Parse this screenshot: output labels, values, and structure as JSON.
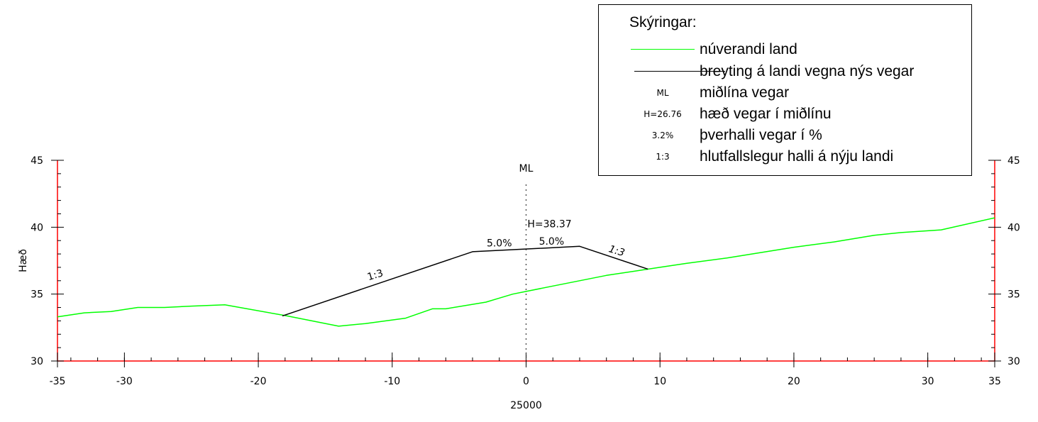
{
  "chart_data": {
    "type": "line",
    "ylabel": "Hæð",
    "xlabel": "25000",
    "xlim": [
      -35,
      35
    ],
    "ylim": [
      30,
      45
    ],
    "x_ticks": [
      -35,
      -30,
      -20,
      -10,
      0,
      10,
      20,
      30,
      35
    ],
    "y_ticks": [
      30,
      35,
      40,
      45
    ],
    "colors": {
      "existing": "#00ff00",
      "new": "#000000",
      "axis": "#ff0000",
      "centerline": "#555555"
    },
    "series": [
      {
        "name": "núverandi land",
        "x": [
          -35,
          -33,
          -31,
          -29,
          -27,
          -25,
          -22.5,
          -18,
          -14,
          -12,
          -9,
          -7,
          -6,
          -3,
          -2,
          -1,
          0,
          2,
          4,
          6,
          8,
          10,
          12,
          15,
          20,
          23,
          26,
          28,
          31,
          35
        ],
        "y": [
          33.3,
          33.6,
          33.7,
          34.0,
          34.0,
          34.1,
          34.2,
          33.4,
          32.6,
          32.8,
          33.2,
          33.9,
          33.9,
          34.4,
          34.7,
          35.0,
          35.2,
          35.6,
          36.0,
          36.4,
          36.7,
          37.0,
          37.3,
          37.7,
          38.5,
          38.9,
          39.4,
          39.6,
          39.8,
          40.7
        ]
      },
      {
        "name": "breyting á landi vegna nýs vegar",
        "x": [
          -18.2,
          -4,
          4,
          9.1
        ],
        "y": [
          33.37,
          38.17,
          38.57,
          36.87
        ]
      }
    ],
    "annotations": {
      "centerline_label": "ML",
      "height_label": "H=38.37",
      "left_crossfall": "5.0%",
      "right_crossfall": "5.0%",
      "left_slope": "1:3",
      "right_slope": "1:3"
    }
  },
  "legend": {
    "title": "Skýringar:",
    "items": [
      {
        "symbol": "",
        "type": "line-green",
        "text": "núverandi land"
      },
      {
        "symbol": "",
        "type": "line-black",
        "text": "breyting á landi vegna nýs vegar"
      },
      {
        "symbol": "ML",
        "type": "label",
        "text": "miðlína vegar"
      },
      {
        "symbol": "H=26.76",
        "type": "label",
        "text": "hæð vegar í miðlínu"
      },
      {
        "symbol": "3.2%",
        "type": "label",
        "text": "þverhalli vegar í %"
      },
      {
        "symbol": "1:3",
        "type": "label",
        "text": "hlutfallslegur halli á nýju landi"
      }
    ]
  }
}
